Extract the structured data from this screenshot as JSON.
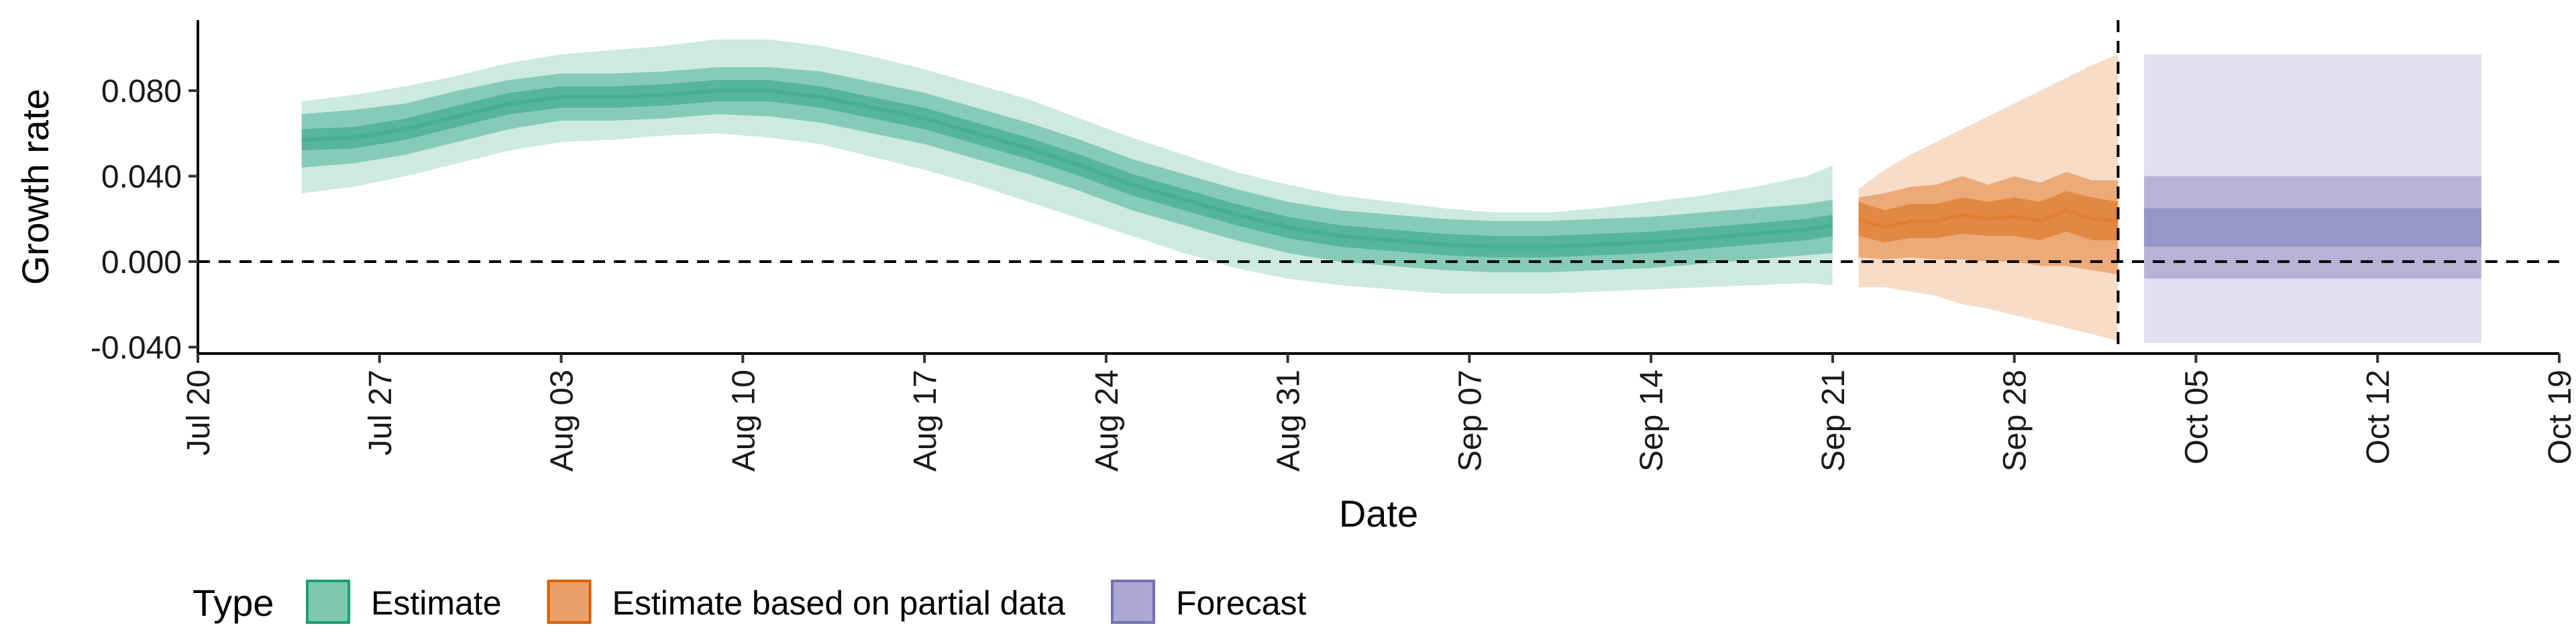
{
  "chart_data": {
    "type": "area",
    "xlabel": "Date",
    "ylabel": "Growth rate",
    "x_axis": {
      "type": "date",
      "range": [
        "2020-07-20",
        "2020-10-19"
      ],
      "tick_dates": [
        "2020-07-20",
        "2020-07-27",
        "2020-08-03",
        "2020-08-10",
        "2020-08-17",
        "2020-08-24",
        "2020-08-31",
        "2020-09-07",
        "2020-09-14",
        "2020-09-21",
        "2020-09-28",
        "2020-10-05",
        "2020-10-12",
        "2020-10-19"
      ],
      "tick_labels": [
        "Jul 20",
        "Jul 27",
        "Aug 03",
        "Aug 10",
        "Aug 17",
        "Aug 24",
        "Aug 31",
        "Sep 07",
        "Sep 14",
        "Sep 21",
        "Sep 28",
        "Oct 05",
        "Oct 12",
        "Oct 19"
      ]
    },
    "y_axis": {
      "range": [
        -0.043,
        0.113
      ],
      "ticks": [
        -0.04,
        0,
        0.04,
        0.08
      ],
      "tick_labels": [
        "-0.040",
        "0.000",
        "0.040",
        "0.080"
      ]
    },
    "reference_lines": {
      "horizontal_y": 0,
      "vertical_date": "2020-10-02"
    },
    "legend": {
      "title": "Type",
      "position": "bottom-left",
      "items": [
        {
          "label": "Estimate",
          "fill": "#7fc9b0",
          "stroke": "#1b9e77"
        },
        {
          "label": "Estimate based on partial data",
          "fill": "#eba06a",
          "stroke": "#d95f02"
        },
        {
          "label": "Forecast",
          "fill": "#aca8d2",
          "stroke": "#7570b3"
        }
      ]
    },
    "series": [
      {
        "name": "Estimate",
        "color": "#1b9e77",
        "dates": [
          "2020-07-24",
          "2020-07-26",
          "2020-07-28",
          "2020-07-30",
          "2020-08-01",
          "2020-08-03",
          "2020-08-05",
          "2020-08-07",
          "2020-08-09",
          "2020-08-11",
          "2020-08-13",
          "2020-08-15",
          "2020-08-17",
          "2020-08-19",
          "2020-08-21",
          "2020-08-23",
          "2020-08-25",
          "2020-08-27",
          "2020-08-29",
          "2020-08-31",
          "2020-09-02",
          "2020-09-04",
          "2020-09-06",
          "2020-09-08",
          "2020-09-10",
          "2020-09-12",
          "2020-09-14",
          "2020-09-16",
          "2020-09-18",
          "2020-09-20",
          "2020-09-21"
        ],
        "median": [
          0.057,
          0.058,
          0.062,
          0.068,
          0.074,
          0.077,
          0.077,
          0.078,
          0.08,
          0.08,
          0.077,
          0.072,
          0.067,
          0.06,
          0.053,
          0.045,
          0.036,
          0.029,
          0.022,
          0.016,
          0.012,
          0.01,
          0.008,
          0.007,
          0.007,
          0.008,
          0.009,
          0.011,
          0.013,
          0.015,
          0.017
        ],
        "inner_lower": [
          0.052,
          0.053,
          0.057,
          0.063,
          0.069,
          0.072,
          0.072,
          0.073,
          0.075,
          0.075,
          0.072,
          0.067,
          0.062,
          0.055,
          0.048,
          0.04,
          0.031,
          0.024,
          0.017,
          0.011,
          0.007,
          0.005,
          0.003,
          0.002,
          0.002,
          0.003,
          0.004,
          0.006,
          0.008,
          0.01,
          0.012
        ],
        "inner_upper": [
          0.062,
          0.063,
          0.067,
          0.073,
          0.079,
          0.082,
          0.082,
          0.083,
          0.085,
          0.085,
          0.082,
          0.077,
          0.072,
          0.065,
          0.058,
          0.05,
          0.041,
          0.034,
          0.027,
          0.021,
          0.017,
          0.015,
          0.013,
          0.012,
          0.012,
          0.013,
          0.014,
          0.016,
          0.018,
          0.02,
          0.022
        ],
        "mid_lower": [
          0.044,
          0.046,
          0.05,
          0.056,
          0.062,
          0.066,
          0.066,
          0.067,
          0.069,
          0.068,
          0.065,
          0.06,
          0.055,
          0.048,
          0.041,
          0.033,
          0.024,
          0.017,
          0.01,
          0.004,
          0.0,
          -0.002,
          -0.004,
          -0.005,
          -0.005,
          -0.004,
          -0.003,
          -0.001,
          0.001,
          0.003,
          0.004
        ],
        "mid_upper": [
          0.069,
          0.071,
          0.074,
          0.08,
          0.085,
          0.088,
          0.088,
          0.089,
          0.091,
          0.091,
          0.089,
          0.084,
          0.079,
          0.072,
          0.065,
          0.057,
          0.048,
          0.041,
          0.034,
          0.028,
          0.024,
          0.022,
          0.02,
          0.019,
          0.019,
          0.02,
          0.021,
          0.023,
          0.025,
          0.027,
          0.029
        ],
        "outer_lower": [
          0.032,
          0.035,
          0.04,
          0.046,
          0.052,
          0.056,
          0.057,
          0.059,
          0.06,
          0.058,
          0.055,
          0.049,
          0.043,
          0.036,
          0.028,
          0.02,
          0.012,
          0.004,
          -0.003,
          -0.008,
          -0.011,
          -0.013,
          -0.015,
          -0.015,
          -0.015,
          -0.014,
          -0.013,
          -0.012,
          -0.011,
          -0.01,
          -0.011
        ],
        "outer_upper": [
          0.075,
          0.078,
          0.082,
          0.087,
          0.093,
          0.097,
          0.099,
          0.101,
          0.104,
          0.104,
          0.101,
          0.096,
          0.09,
          0.083,
          0.076,
          0.067,
          0.058,
          0.05,
          0.042,
          0.036,
          0.031,
          0.028,
          0.025,
          0.023,
          0.023,
          0.025,
          0.028,
          0.031,
          0.035,
          0.04,
          0.045
        ]
      },
      {
        "name": "Estimate based on partial data",
        "color": "#d95f02",
        "dates": [
          "2020-09-22",
          "2020-09-23",
          "2020-09-24",
          "2020-09-25",
          "2020-09-26",
          "2020-09-27",
          "2020-09-28",
          "2020-09-29",
          "2020-09-30",
          "2020-10-01",
          "2020-10-02"
        ],
        "median": [
          0.02,
          0.016,
          0.019,
          0.019,
          0.022,
          0.02,
          0.021,
          0.019,
          0.024,
          0.02,
          0.019
        ],
        "inner_lower": [
          0.012,
          0.009,
          0.011,
          0.011,
          0.013,
          0.012,
          0.012,
          0.01,
          0.014,
          0.01,
          0.01
        ],
        "inner_upper": [
          0.028,
          0.024,
          0.027,
          0.027,
          0.03,
          0.028,
          0.03,
          0.028,
          0.033,
          0.03,
          0.028
        ],
        "mid_lower": [
          0.002,
          0.001,
          0.002,
          0.001,
          0.001,
          0.0,
          0.0,
          -0.002,
          -0.002,
          -0.004,
          -0.006
        ],
        "mid_upper": [
          0.03,
          0.032,
          0.035,
          0.036,
          0.04,
          0.036,
          0.04,
          0.037,
          0.042,
          0.038,
          0.038
        ],
        "outer_lower": [
          -0.012,
          -0.012,
          -0.014,
          -0.016,
          -0.02,
          -0.022,
          -0.025,
          -0.028,
          -0.031,
          -0.034,
          -0.037
        ],
        "outer_upper": [
          0.034,
          0.043,
          0.05,
          0.056,
          0.062,
          0.068,
          0.074,
          0.08,
          0.086,
          0.092,
          0.097
        ]
      },
      {
        "name": "Forecast",
        "color": "#7570b3",
        "date_range": [
          "2020-10-03",
          "2020-10-16"
        ],
        "inner_lower": 0.007,
        "inner_upper": 0.025,
        "mid_lower": -0.008,
        "mid_upper": 0.04,
        "outer_lower": -0.038,
        "outer_upper": 0.097
      }
    ]
  }
}
